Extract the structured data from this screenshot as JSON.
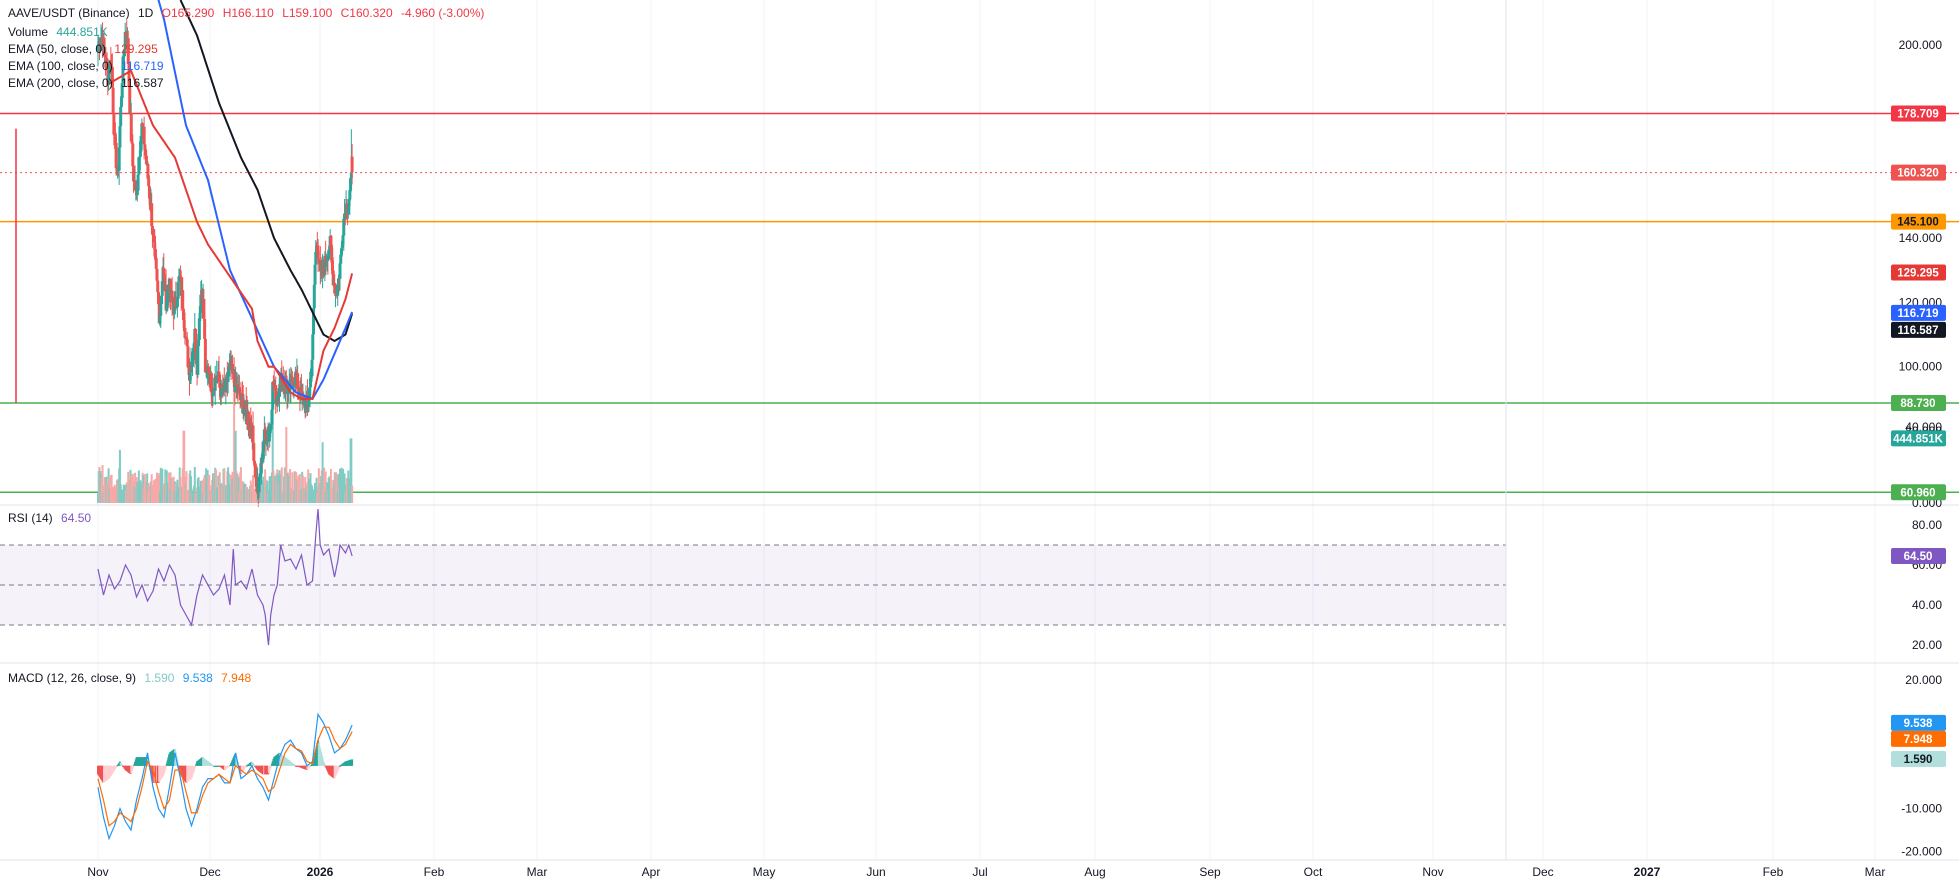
{
  "legend": {
    "symbol": "AAVE/USDT (Binance)",
    "interval": "1D",
    "open": "O165.290",
    "high": "H166.110",
    "low": "L159.100",
    "close": "C160.320",
    "change": "-4.960 (-3.00%)",
    "volume_label": "Volume",
    "volume_value": "444.851K",
    "ema50_label": "EMA (50, close, 0)",
    "ema50_value": "129.295",
    "ema100_label": "EMA (100, close, 0)",
    "ema100_value": "116.719",
    "ema200_label": "EMA (200, close, 0)",
    "ema200_value": "116.587",
    "rsi_label": "RSI (14)",
    "rsi_value": "64.50",
    "macd_label": "MACD (12, 26, close, 9)",
    "macd_hist_value": "1.590",
    "macd_value": "9.538",
    "signal_value": "7.948"
  },
  "colors": {
    "up": "#26a69a",
    "down": "#ef5350",
    "ema50": "#e53935",
    "ema100": "#2962ff",
    "ema200": "#131722",
    "resistance": "#f23645",
    "support_mid": "#ff9800",
    "support": "#4caf50",
    "rsi": "#7e57c2",
    "macd": "#2196f3",
    "signal": "#ff6d00"
  },
  "chart_data": {
    "type": "candlestick",
    "x_axis_labels": [
      "Nov",
      "Dec",
      "2026",
      "Feb",
      "Mar",
      "Apr",
      "May",
      "Jun",
      "Jul",
      "Aug",
      "Sep",
      "Oct",
      "Nov",
      "Dec",
      "2027",
      "Feb",
      "Mar"
    ],
    "price_axis": {
      "ticks": [
        "200.000",
        "140.000",
        "120.000",
        "100.000",
        "80.000"
      ],
      "ylim": [
        57,
        214
      ]
    },
    "horizontal_lines": [
      {
        "value": 178.709,
        "label": "178.709",
        "color": "resistance"
      },
      {
        "value": 145.1,
        "label": "145.100",
        "color": "support_mid"
      },
      {
        "value": 88.73,
        "label": "88.730",
        "color": "support"
      },
      {
        "value": 60.96,
        "label": "60.960",
        "color": "support"
      }
    ],
    "last_price": {
      "value": 160.32,
      "label": "160.320"
    },
    "ema_badges": [
      {
        "value": 129.295,
        "label": "129.295",
        "color": "ema50"
      },
      {
        "value": 116.719,
        "label": "116.719",
        "color": "ema100"
      },
      {
        "value": 116.587,
        "label": "116.587",
        "color": "ema200"
      }
    ],
    "price_anchors": [
      [
        0,
        200
      ],
      [
        0.03,
        203
      ],
      [
        0.06,
        198
      ],
      [
        0.09,
        190
      ],
      [
        0.12,
        196
      ],
      [
        0.15,
        170
      ],
      [
        0.18,
        158
      ],
      [
        0.2,
        175
      ],
      [
        0.22,
        190
      ],
      [
        0.25,
        205
      ],
      [
        0.27,
        200
      ],
      [
        0.29,
        180
      ],
      [
        0.32,
        160
      ],
      [
        0.35,
        152
      ],
      [
        0.37,
        165
      ],
      [
        0.4,
        175
      ],
      [
        0.42,
        170
      ],
      [
        0.45,
        160
      ],
      [
        0.48,
        150
      ],
      [
        0.5,
        140
      ],
      [
        0.53,
        128
      ],
      [
        0.56,
        115
      ],
      [
        0.59,
        130
      ],
      [
        0.62,
        120
      ],
      [
        0.65,
        125
      ],
      [
        0.68,
        118
      ],
      [
        0.71,
        120
      ],
      [
        0.74,
        128
      ],
      [
        0.77,
        120
      ],
      [
        0.8,
        108
      ],
      [
        0.83,
        98
      ],
      [
        0.85,
        102
      ],
      [
        0.88,
        110
      ],
      [
        0.9,
        100
      ],
      [
        0.92,
        115
      ],
      [
        0.94,
        125
      ],
      [
        0.96,
        118
      ],
      [
        0.98,
        95
      ],
      [
        1,
        100
      ],
      [
        1.04,
        93
      ],
      [
        1.08,
        98
      ],
      [
        1.12,
        92
      ],
      [
        1.16,
        93
      ],
      [
        1.2,
        100
      ],
      [
        1.24,
        95
      ],
      [
        1.28,
        92
      ],
      [
        1.32,
        88
      ],
      [
        1.36,
        85
      ],
      [
        1.4,
        80
      ],
      [
        1.42,
        72
      ],
      [
        1.44,
        63
      ],
      [
        1.46,
        62
      ],
      [
        1.48,
        68
      ],
      [
        1.5,
        75
      ],
      [
        1.52,
        80
      ],
      [
        1.55,
        78
      ],
      [
        1.57,
        82
      ],
      [
        1.59,
        95
      ],
      [
        1.62,
        90
      ],
      [
        1.66,
        96
      ],
      [
        1.7,
        95
      ],
      [
        1.73,
        92
      ],
      [
        1.76,
        95
      ],
      [
        1.79,
        97
      ],
      [
        1.82,
        94
      ],
      [
        1.85,
        90
      ],
      [
        1.88,
        89
      ],
      [
        1.91,
        88
      ],
      [
        1.93,
        95
      ],
      [
        1.95,
        105
      ],
      [
        1.97,
        130
      ],
      [
        1.99,
        140
      ],
      [
        2.02,
        128
      ],
      [
        2.05,
        130
      ],
      [
        2.08,
        135
      ],
      [
        2.11,
        138
      ],
      [
        2.13,
        130
      ],
      [
        2.15,
        125
      ],
      [
        2.17,
        123
      ],
      [
        2.19,
        128
      ],
      [
        2.21,
        135
      ],
      [
        2.23,
        145
      ],
      [
        2.25,
        150
      ],
      [
        2.27,
        150
      ],
      [
        2.29,
        154
      ],
      [
        2.31,
        160
      ]
    ],
    "ema50_anchors": [
      [
        0.1,
        188
      ],
      [
        0.3,
        192
      ],
      [
        0.5,
        175
      ],
      [
        0.7,
        165
      ],
      [
        0.9,
        145
      ],
      [
        1,
        138
      ],
      [
        1.2,
        128
      ],
      [
        1.4,
        118
      ],
      [
        1.45,
        108
      ],
      [
        1.55,
        100
      ],
      [
        1.6,
        100
      ],
      [
        1.75,
        92
      ],
      [
        1.85,
        90
      ],
      [
        1.95,
        90
      ],
      [
        2.05,
        105
      ],
      [
        2.15,
        112
      ],
      [
        2.25,
        121
      ],
      [
        2.31,
        129
      ]
    ],
    "ema100_anchors": [
      [
        0.3,
        230
      ],
      [
        0.5,
        220
      ],
      [
        0.6,
        208
      ],
      [
        0.8,
        175
      ],
      [
        1,
        158
      ],
      [
        1.2,
        130
      ],
      [
        1.4,
        115
      ],
      [
        1.6,
        100
      ],
      [
        1.8,
        92
      ],
      [
        1.95,
        90
      ],
      [
        2.05,
        96
      ],
      [
        2.15,
        104
      ],
      [
        2.25,
        112
      ],
      [
        2.31,
        117
      ]
    ],
    "ema200_anchors": [
      [
        0.75,
        214
      ],
      [
        0.9,
        203
      ],
      [
        1.1,
        182
      ],
      [
        1.3,
        165
      ],
      [
        1.45,
        155
      ],
      [
        1.6,
        140
      ],
      [
        1.75,
        130
      ],
      [
        1.85,
        124
      ],
      [
        1.95,
        117
      ],
      [
        2.05,
        110
      ],
      [
        2.15,
        108
      ],
      [
        2.25,
        110
      ],
      [
        2.31,
        116.5
      ]
    ],
    "volume": {
      "ticks": [
        "40.000",
        "0.000"
      ],
      "ylim": [
        0,
        70
      ],
      "last_value_label": "444.851K",
      "spikes": [
        [
          0.04,
          20
        ],
        [
          0.2,
          28
        ],
        [
          0.78,
          38
        ],
        [
          1.24,
          66
        ],
        [
          1.25,
          38
        ],
        [
          1.59,
          53
        ],
        [
          1.71,
          40
        ],
        [
          2.04,
          32
        ],
        [
          2.3,
          34
        ]
      ]
    },
    "rsi": {
      "ticks": [
        "80.00",
        "60.00",
        "40.00",
        "20.00"
      ],
      "ylim": [
        11,
        90
      ],
      "bands": [
        70,
        50,
        30
      ],
      "last_value_label": "64.50",
      "anchors": [
        [
          0,
          58
        ],
        [
          0.05,
          45
        ],
        [
          0.1,
          55
        ],
        [
          0.15,
          48
        ],
        [
          0.2,
          52
        ],
        [
          0.25,
          60
        ],
        [
          0.3,
          55
        ],
        [
          0.35,
          44
        ],
        [
          0.4,
          50
        ],
        [
          0.45,
          42
        ],
        [
          0.5,
          47
        ],
        [
          0.55,
          58
        ],
        [
          0.6,
          52
        ],
        [
          0.65,
          60
        ],
        [
          0.7,
          55
        ],
        [
          0.75,
          40
        ],
        [
          0.8,
          35
        ],
        [
          0.85,
          30
        ],
        [
          0.9,
          45
        ],
        [
          0.95,
          55
        ],
        [
          1,
          50
        ],
        [
          1.05,
          45
        ],
        [
          1.1,
          48
        ],
        [
          1.15,
          55
        ],
        [
          1.2,
          40
        ],
        [
          1.23,
          68
        ],
        [
          1.25,
          50
        ],
        [
          1.3,
          52
        ],
        [
          1.35,
          48
        ],
        [
          1.4,
          58
        ],
        [
          1.45,
          45
        ],
        [
          1.5,
          40
        ],
        [
          1.52,
          35
        ],
        [
          1.54,
          25
        ],
        [
          1.55,
          20
        ],
        [
          1.57,
          35
        ],
        [
          1.6,
          45
        ],
        [
          1.63,
          50
        ],
        [
          1.66,
          70
        ],
        [
          1.7,
          62
        ],
        [
          1.75,
          63
        ],
        [
          1.8,
          58
        ],
        [
          1.85,
          65
        ],
        [
          1.9,
          50
        ],
        [
          1.95,
          52
        ],
        [
          1.98,
          75
        ],
        [
          2,
          88
        ],
        [
          2.02,
          70
        ],
        [
          2.05,
          65
        ],
        [
          2.1,
          68
        ],
        [
          2.15,
          54
        ],
        [
          2.18,
          62
        ],
        [
          2.2,
          70
        ],
        [
          2.25,
          66
        ],
        [
          2.28,
          70
        ],
        [
          2.31,
          64.5
        ]
      ]
    },
    "macd": {
      "ticks": [
        "20.000",
        "10.000",
        "-10.000",
        "-20.000"
      ],
      "ylim": [
        -22,
        24
      ],
      "last_labels": {
        "macd": "9.538",
        "signal": "7.948",
        "hist": "1.590"
      },
      "macd_anchors": [
        [
          0,
          -5
        ],
        [
          0.05,
          -12
        ],
        [
          0.1,
          -17
        ],
        [
          0.15,
          -14
        ],
        [
          0.2,
          -10
        ],
        [
          0.25,
          -13
        ],
        [
          0.3,
          -15
        ],
        [
          0.35,
          -8
        ],
        [
          0.4,
          -3
        ],
        [
          0.45,
          3
        ],
        [
          0.5,
          -5
        ],
        [
          0.55,
          -10
        ],
        [
          0.6,
          -12
        ],
        [
          0.65,
          -5
        ],
        [
          0.7,
          3
        ],
        [
          0.75,
          -3
        ],
        [
          0.8,
          -10
        ],
        [
          0.85,
          -14
        ],
        [
          0.9,
          -10
        ],
        [
          0.95,
          -5
        ],
        [
          1,
          -3
        ],
        [
          1.05,
          -3
        ],
        [
          1.1,
          -2
        ],
        [
          1.15,
          -4
        ],
        [
          1.2,
          -4
        ],
        [
          1.25,
          3
        ],
        [
          1.3,
          -3
        ],
        [
          1.35,
          -2
        ],
        [
          1.4,
          0
        ],
        [
          1.45,
          -3
        ],
        [
          1.5,
          -5
        ],
        [
          1.55,
          -8
        ],
        [
          1.6,
          -3
        ],
        [
          1.65,
          2
        ],
        [
          1.7,
          5
        ],
        [
          1.75,
          6
        ],
        [
          1.8,
          4
        ],
        [
          1.85,
          3
        ],
        [
          1.9,
          0
        ],
        [
          1.95,
          1
        ],
        [
          2,
          12
        ],
        [
          2.05,
          10
        ],
        [
          2.1,
          7
        ],
        [
          2.15,
          3
        ],
        [
          2.2,
          4
        ],
        [
          2.25,
          6
        ],
        [
          2.31,
          9.5
        ]
      ],
      "signal_anchors": [
        [
          0,
          -3
        ],
        [
          0.05,
          -8
        ],
        [
          0.1,
          -14
        ],
        [
          0.15,
          -13
        ],
        [
          0.2,
          -11
        ],
        [
          0.25,
          -12
        ],
        [
          0.3,
          -13
        ],
        [
          0.35,
          -10
        ],
        [
          0.4,
          -5
        ],
        [
          0.45,
          1
        ],
        [
          0.5,
          -1
        ],
        [
          0.55,
          -6
        ],
        [
          0.6,
          -10
        ],
        [
          0.65,
          -8
        ],
        [
          0.7,
          -1
        ],
        [
          0.75,
          -1
        ],
        [
          0.8,
          -6
        ],
        [
          0.85,
          -11
        ],
        [
          0.9,
          -11
        ],
        [
          0.95,
          -7
        ],
        [
          1,
          -4
        ],
        [
          1.05,
          -3
        ],
        [
          1.1,
          -2
        ],
        [
          1.15,
          -3
        ],
        [
          1.2,
          -4
        ],
        [
          1.25,
          0
        ],
        [
          1.3,
          -1
        ],
        [
          1.35,
          -2
        ],
        [
          1.4,
          -1
        ],
        [
          1.45,
          -2
        ],
        [
          1.5,
          -3
        ],
        [
          1.55,
          -6
        ],
        [
          1.6,
          -5
        ],
        [
          1.65,
          -1
        ],
        [
          1.7,
          3
        ],
        [
          1.75,
          5
        ],
        [
          1.8,
          4
        ],
        [
          1.85,
          3.5
        ],
        [
          1.9,
          1
        ],
        [
          1.95,
          0.5
        ],
        [
          2,
          6
        ],
        [
          2.05,
          9
        ],
        [
          2.1,
          9
        ],
        [
          2.15,
          6
        ],
        [
          2.2,
          4
        ],
        [
          2.25,
          5
        ],
        [
          2.31,
          8
        ]
      ]
    }
  }
}
